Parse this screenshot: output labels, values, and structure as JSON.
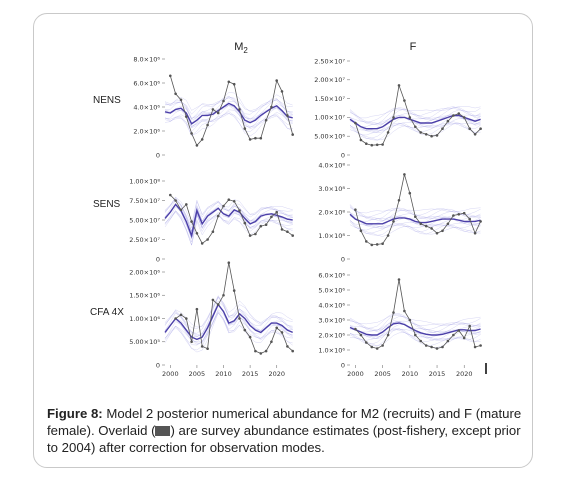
{
  "columns": {
    "m2": "M",
    "m2_sub": "2",
    "f": "F"
  },
  "rows": {
    "nens": "NENS",
    "sens": "SENS",
    "cfa": "CFA 4X"
  },
  "x_axis": {
    "ticks": [
      "2000",
      "2005",
      "2010",
      "2015",
      "2020"
    ],
    "range": [
      1999,
      2024
    ]
  },
  "caption": {
    "label": "Figure 8:",
    "text_a": " Model 2 posterior numerical abundance for M2 (recruits) and F (mature female). Overlaid (",
    "text_b": ") are survey abundance estimates (post-fishery, except prior to 2004) after correction for observation modes."
  },
  "colors": {
    "posterior": "#4b3fa8",
    "posterior_band": "#8a86dd",
    "survey": "#555555"
  },
  "chart_data": [
    {
      "type": "line",
      "row": "NENS",
      "column": "M2",
      "ylim": [
        0,
        8000000
      ],
      "y_ticks": [
        {
          "v": 0,
          "label": "0"
        },
        {
          "v": 2000000,
          "label": "2.0×10⁶"
        },
        {
          "v": 4000000,
          "label": "4.0×10⁶"
        },
        {
          "v": 6000000,
          "label": "6.0×10⁶"
        },
        {
          "v": 8000000,
          "label": "8.0×10⁶"
        }
      ],
      "posterior_x": [
        1999,
        2000,
        2001,
        2002,
        2003,
        2004,
        2005,
        2006,
        2007,
        2008,
        2009,
        2010,
        2011,
        2012,
        2013,
        2014,
        2015,
        2016,
        2017,
        2018,
        2019,
        2020,
        2021,
        2022,
        2023
      ],
      "posterior_mean": [
        3600000,
        3500000,
        3800000,
        3900000,
        3500000,
        2600000,
        2900000,
        3300000,
        3300000,
        3400000,
        3700000,
        4000000,
        4300000,
        4100000,
        3600000,
        2900000,
        2700000,
        2900000,
        3300000,
        3600000,
        3900000,
        4100000,
        3700000,
        3200000,
        3100000
      ],
      "survey": {
        "x": [
          2000,
          2001,
          2002,
          2003,
          2004,
          2005,
          2006,
          2007,
          2008,
          2009,
          2010,
          2011,
          2012,
          2013,
          2014,
          2015,
          2016,
          2017,
          2018,
          2019,
          2020,
          2021,
          2022,
          2023
        ],
        "y": [
          6600000,
          5100000,
          4600000,
          3200000,
          1800000,
          800000,
          1300000,
          2500000,
          3800000,
          3500000,
          4500000,
          6100000,
          5900000,
          3800000,
          2200000,
          1300000,
          1400000,
          1400000,
          2900000,
          4000000,
          6200000,
          5300000,
          3300000,
          1700000
        ]
      }
    },
    {
      "type": "line",
      "row": "NENS",
      "column": "F",
      "ylim": [
        0,
        25000000
      ],
      "y_ticks": [
        {
          "v": 0,
          "label": "0"
        },
        {
          "v": 5000000,
          "label": "5.00×10⁶"
        },
        {
          "v": 10000000,
          "label": "1.00×10⁷"
        },
        {
          "v": 15000000,
          "label": "1.50×10⁷"
        },
        {
          "v": 20000000,
          "label": "2.00×10⁷"
        },
        {
          "v": 25000000,
          "label": "2.50×10⁷"
        }
      ],
      "posterior_x": [
        1999,
        2000,
        2001,
        2002,
        2003,
        2004,
        2005,
        2006,
        2007,
        2008,
        2009,
        2010,
        2011,
        2012,
        2013,
        2014,
        2015,
        2016,
        2017,
        2018,
        2019,
        2020,
        2021,
        2022,
        2023
      ],
      "posterior_mean": [
        9500000,
        8500000,
        7500000,
        7000000,
        7000000,
        7000000,
        7500000,
        8500000,
        9500000,
        10000000,
        10000000,
        9500000,
        9000000,
        8500000,
        8500000,
        8500000,
        9000000,
        9500000,
        10000000,
        10500000,
        10500000,
        10000000,
        9500000,
        9000000,
        9500000
      ],
      "survey": {
        "x": [
          2000,
          2001,
          2002,
          2003,
          2004,
          2005,
          2006,
          2007,
          2008,
          2009,
          2010,
          2011,
          2012,
          2013,
          2014,
          2015,
          2016,
          2017,
          2018,
          2019,
          2020,
          2021,
          2022,
          2023
        ],
        "y": [
          8500000,
          4000000,
          3000000,
          2600000,
          2700000,
          2800000,
          6000000,
          10000000,
          18500000,
          14500000,
          10000000,
          7500000,
          6000000,
          5500000,
          5000000,
          5200000,
          7000000,
          9000000,
          10500000,
          11000000,
          10000000,
          7000000,
          5500000,
          7000000
        ]
      }
    },
    {
      "type": "line",
      "row": "SENS",
      "column": "M2",
      "ylim": [
        0,
        100000000
      ],
      "y_ticks": [
        {
          "v": 0,
          "label": "0"
        },
        {
          "v": 25000000,
          "label": "2.50×10⁷"
        },
        {
          "v": 50000000,
          "label": "5.00×10⁷"
        },
        {
          "v": 75000000,
          "label": "7.50×10⁷"
        },
        {
          "v": 100000000,
          "label": "1.00×10⁸"
        }
      ],
      "posterior_x": [
        1999,
        2000,
        2001,
        2002,
        2003,
        2004,
        2005,
        2006,
        2007,
        2008,
        2009,
        2010,
        2011,
        2012,
        2013,
        2014,
        2015,
        2016,
        2017,
        2018,
        2019,
        2020,
        2021,
        2022,
        2023
      ],
      "posterior_mean": [
        52000000,
        60000000,
        70000000,
        62000000,
        48000000,
        30000000,
        62000000,
        45000000,
        55000000,
        60000000,
        65000000,
        58000000,
        55000000,
        63000000,
        60000000,
        52000000,
        45000000,
        48000000,
        55000000,
        57000000,
        58000000,
        56000000,
        54000000,
        51000000,
        50000000
      ],
      "survey": {
        "x": [
          2000,
          2001,
          2002,
          2003,
          2004,
          2005,
          2006,
          2007,
          2008,
          2009,
          2010,
          2011,
          2012,
          2013,
          2014,
          2015,
          2016,
          2017,
          2018,
          2019,
          2020,
          2021,
          2022,
          2023
        ],
        "y": [
          82000000,
          75000000,
          63000000,
          70000000,
          48000000,
          33000000,
          20000000,
          25000000,
          35000000,
          55000000,
          68000000,
          76000000,
          74000000,
          62000000,
          46000000,
          30000000,
          32000000,
          42000000,
          44000000,
          54000000,
          60000000,
          38000000,
          35000000,
          30000000
        ]
      }
    },
    {
      "type": "line",
      "row": "SENS",
      "column": "F",
      "ylim": [
        0,
        400000000
      ],
      "y_ticks": [
        {
          "v": 0,
          "label": "0"
        },
        {
          "v": 100000000,
          "label": "1.0×10⁸"
        },
        {
          "v": 200000000,
          "label": "2.0×10⁸"
        },
        {
          "v": 300000000,
          "label": "3.0×10⁸"
        },
        {
          "v": 400000000,
          "label": "4.0×10⁸"
        }
      ],
      "posterior_x": [
        1999,
        2000,
        2001,
        2002,
        2003,
        2004,
        2005,
        2006,
        2007,
        2008,
        2009,
        2010,
        2011,
        2012,
        2013,
        2014,
        2015,
        2016,
        2017,
        2018,
        2019,
        2020,
        2021,
        2022,
        2023
      ],
      "posterior_mean": [
        190000000,
        170000000,
        160000000,
        150000000,
        150000000,
        150000000,
        150000000,
        160000000,
        170000000,
        175000000,
        175000000,
        170000000,
        160000000,
        155000000,
        155000000,
        160000000,
        165000000,
        170000000,
        170000000,
        170000000,
        165000000,
        160000000,
        160000000,
        160000000,
        165000000
      ],
      "survey": {
        "x": [
          2000,
          2001,
          2002,
          2003,
          2004,
          2005,
          2006,
          2007,
          2008,
          2009,
          2010,
          2011,
          2012,
          2013,
          2014,
          2015,
          2016,
          2017,
          2018,
          2019,
          2020,
          2021,
          2022,
          2023
        ],
        "y": [
          210000000,
          120000000,
          75000000,
          60000000,
          62000000,
          65000000,
          100000000,
          160000000,
          250000000,
          360000000,
          280000000,
          180000000,
          150000000,
          140000000,
          130000000,
          110000000,
          120000000,
          150000000,
          185000000,
          190000000,
          195000000,
          170000000,
          110000000,
          160000000
        ]
      }
    },
    {
      "type": "line",
      "row": "CFA 4X",
      "column": "M2",
      "ylim": [
        0,
        2000000
      ],
      "y_ticks": [
        {
          "v": 0,
          "label": "0"
        },
        {
          "v": 500000,
          "label": "5.00×10⁵"
        },
        {
          "v": 1000000,
          "label": "1.00×10⁶"
        },
        {
          "v": 1500000,
          "label": "1.50×10⁶"
        },
        {
          "v": 2000000,
          "label": "2.00×10⁶"
        }
      ],
      "posterior_x": [
        1999,
        2000,
        2001,
        2002,
        2003,
        2004,
        2005,
        2006,
        2007,
        2008,
        2009,
        2010,
        2011,
        2012,
        2013,
        2014,
        2015,
        2016,
        2017,
        2018,
        2019,
        2020,
        2021,
        2022,
        2023
      ],
      "posterior_mean": [
        700000,
        850000,
        1000000,
        900000,
        750000,
        600000,
        550000,
        600000,
        800000,
        1050000,
        1300000,
        1150000,
        900000,
        950000,
        1100000,
        1000000,
        850000,
        750000,
        700000,
        800000,
        900000,
        900000,
        850000,
        750000,
        700000
      ],
      "survey": {
        "x": [
          2001,
          2002,
          2003,
          2004,
          2005,
          2006,
          2007,
          2008,
          2009,
          2010,
          2011,
          2012,
          2013,
          2014,
          2015,
          2016,
          2017,
          2018,
          2019,
          2020,
          2021,
          2022,
          2023
        ],
        "y": [
          1000000,
          1080000,
          1000000,
          500000,
          1200000,
          400000,
          350000,
          1400000,
          1300000,
          1500000,
          2200000,
          1600000,
          1000000,
          750000,
          600000,
          300000,
          250000,
          300000,
          500000,
          800000,
          700000,
          400000,
          300000
        ]
      }
    },
    {
      "type": "line",
      "row": "CFA 4X",
      "column": "F",
      "ylim": [
        0,
        6000000
      ],
      "y_ticks": [
        {
          "v": 0,
          "label": "0"
        },
        {
          "v": 1000000,
          "label": "1.0×10⁶"
        },
        {
          "v": 2000000,
          "label": "2.0×10⁶"
        },
        {
          "v": 3000000,
          "label": "3.0×10⁶"
        },
        {
          "v": 4000000,
          "label": "4.0×10⁶"
        },
        {
          "v": 5000000,
          "label": "5.0×10⁶"
        },
        {
          "v": 6000000,
          "label": "6.0×10⁶"
        }
      ],
      "posterior_x": [
        1999,
        2000,
        2001,
        2002,
        2003,
        2004,
        2005,
        2006,
        2007,
        2008,
        2009,
        2010,
        2011,
        2012,
        2013,
        2014,
        2015,
        2016,
        2017,
        2018,
        2019,
        2020,
        2021,
        2022,
        2023
      ],
      "posterior_mean": [
        2500000,
        2350000,
        2200000,
        2050000,
        2000000,
        2000000,
        2200000,
        2500000,
        2750000,
        2800000,
        2700000,
        2500000,
        2300000,
        2150000,
        2050000,
        2000000,
        2000000,
        2050000,
        2150000,
        2250000,
        2350000,
        2350000,
        2300000,
        2300000,
        2400000
      ],
      "survey": {
        "x": [
          2000,
          2001,
          2002,
          2003,
          2004,
          2005,
          2006,
          2007,
          2008,
          2009,
          2010,
          2011,
          2012,
          2013,
          2014,
          2015,
          2016,
          2017,
          2018,
          2019,
          2020,
          2021,
          2022,
          2023
        ],
        "y": [
          2400000,
          2000000,
          1500000,
          1200000,
          1100000,
          1300000,
          2000000,
          3500000,
          5700000,
          3600000,
          3000000,
          2000000,
          1600000,
          1300000,
          1200000,
          1100000,
          1200000,
          1600000,
          2000000,
          2300000,
          1800000,
          2600000,
          1200000,
          1300000
        ]
      }
    }
  ]
}
